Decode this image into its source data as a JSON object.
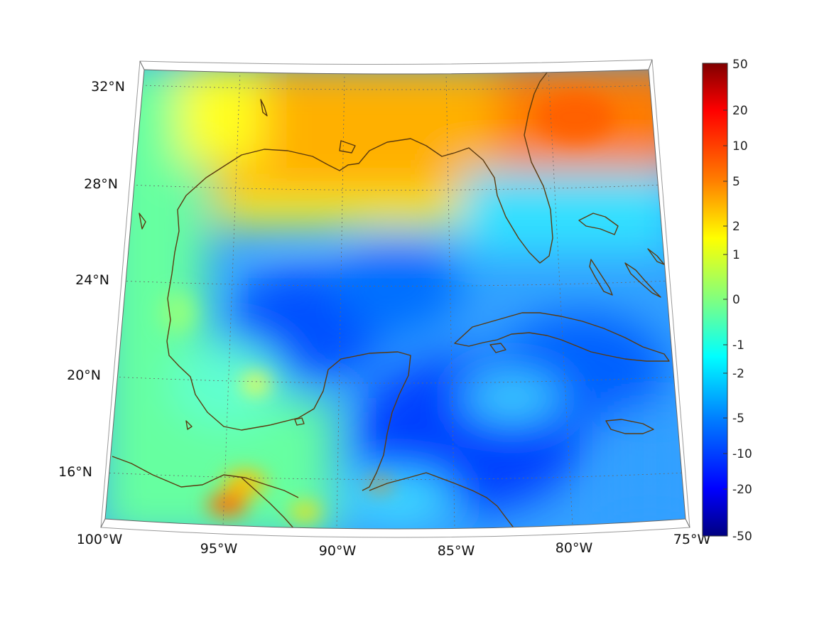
{
  "map": {
    "projection": "conic",
    "region": "Gulf of Mexico and Caribbean",
    "lon_range": [
      -100,
      -75
    ],
    "lat_range": [
      14,
      33
    ],
    "lon_ticks": [
      {
        "value": -100,
        "label": "100°W"
      },
      {
        "value": -95,
        "label": "95°W"
      },
      {
        "value": -90,
        "label": "90°W"
      },
      {
        "value": -85,
        "label": "85°W"
      },
      {
        "value": -80,
        "label": "80°W"
      },
      {
        "value": -75,
        "label": "75°W"
      }
    ],
    "lat_ticks": [
      {
        "value": 32,
        "label": "32°N"
      },
      {
        "value": 28,
        "label": "28°N"
      },
      {
        "value": 24,
        "label": "24°N"
      },
      {
        "value": 20,
        "label": "20°N"
      },
      {
        "value": 16,
        "label": "16°N"
      }
    ],
    "grid": true,
    "coastline_color": "#5b3a0f",
    "field_colormap": "jet",
    "field_summary": "positive values (2–5) over the northern Gulf coast and Florida/Atlantic; near 0 in western Gulf and Mexico; negative (-2 to -10) over central Gulf and Caribbean"
  },
  "colorbar": {
    "colormap": "jet",
    "scale": "symmetric log",
    "ticks": [
      "50",
      "20",
      "10",
      "5",
      "2",
      "1",
      "0",
      "-1",
      "-2",
      "-5",
      "-10",
      "-20",
      "-50"
    ],
    "max": 50,
    "min": -50
  }
}
